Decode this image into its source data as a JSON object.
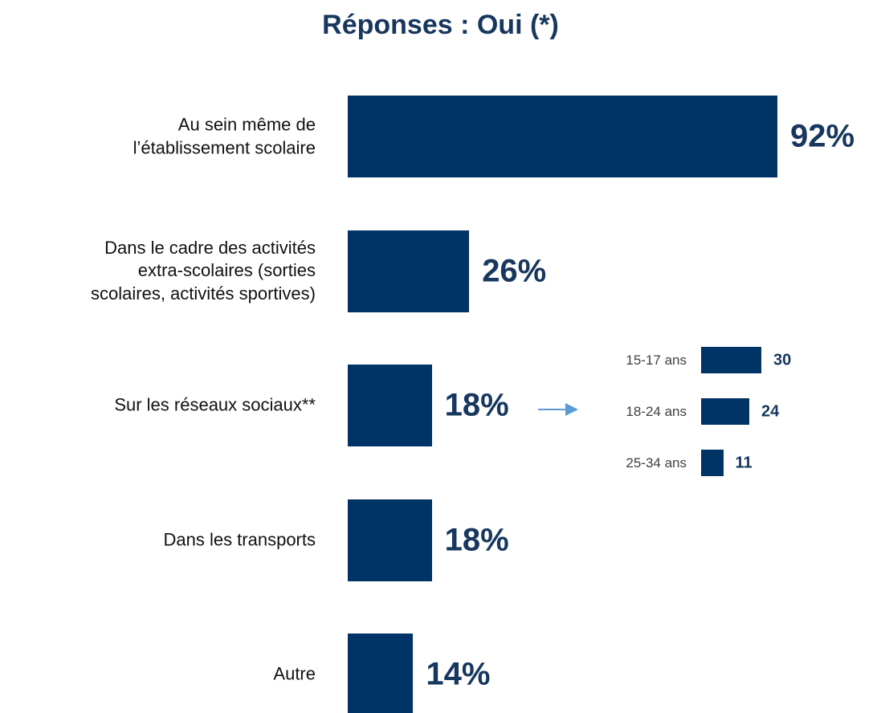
{
  "chart_data": [
    {
      "type": "barh",
      "title": "Réponses : Oui (*)",
      "categories": [
        "Au sein même de\nl’établissement scolaire",
        "Dans le cadre des activités\nextra-scolaires (sorties\nscolaires, activités sportives)",
        "Sur les réseaux sociaux**",
        "Dans les transports",
        "Autre"
      ],
      "values": [
        92,
        26,
        18,
        18,
        14
      ],
      "value_labels": [
        "92%",
        "26%",
        "18%",
        "18%",
        "14%"
      ],
      "color": "#003366"
    },
    {
      "type": "barh",
      "categories": [
        "15-17 ans",
        "18-24 ans",
        "25-34 ans"
      ],
      "values": [
        30,
        24,
        11
      ],
      "color": "#003366"
    }
  ]
}
